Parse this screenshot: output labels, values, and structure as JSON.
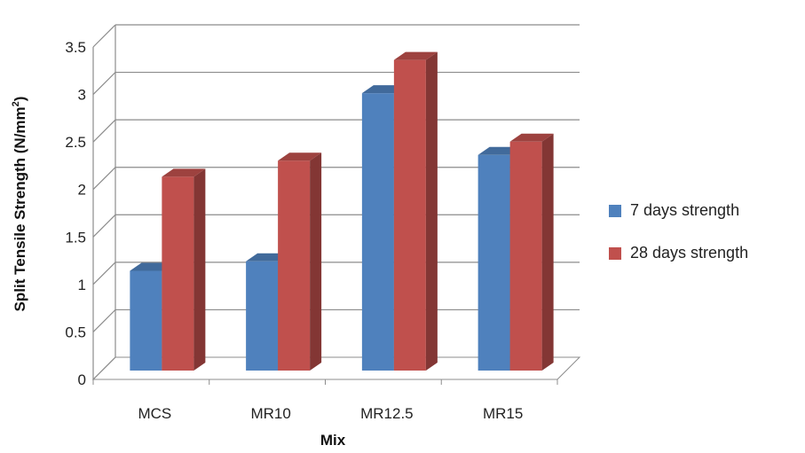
{
  "chart_data": {
    "type": "bar",
    "categories": [
      "MCS",
      "MR10",
      "MR12.5",
      "MR15"
    ],
    "series": [
      {
        "name": "7 days strength",
        "values": [
          1.05,
          1.15,
          2.92,
          2.27
        ],
        "color": "#4f81bd"
      },
      {
        "name": "28 days strength",
        "values": [
          2.04,
          2.21,
          3.27,
          2.41
        ],
        "color": "#c0504d"
      }
    ],
    "title": "",
    "xlabel": "Mix",
    "ylabel": "Split Tensile Strength (N/mm²)",
    "ylabel_base": "Split Tensile Strength (N/mm",
    "ylabel_sup": "2",
    "ylabel_end": ")",
    "ylim": [
      0,
      3.5
    ],
    "yticks": [
      "0",
      "0.5",
      "1",
      "1.5",
      "2",
      "2.5",
      "3",
      "3.5"
    ],
    "grid": true,
    "legend": "right",
    "style": "3d-clustered-column"
  }
}
